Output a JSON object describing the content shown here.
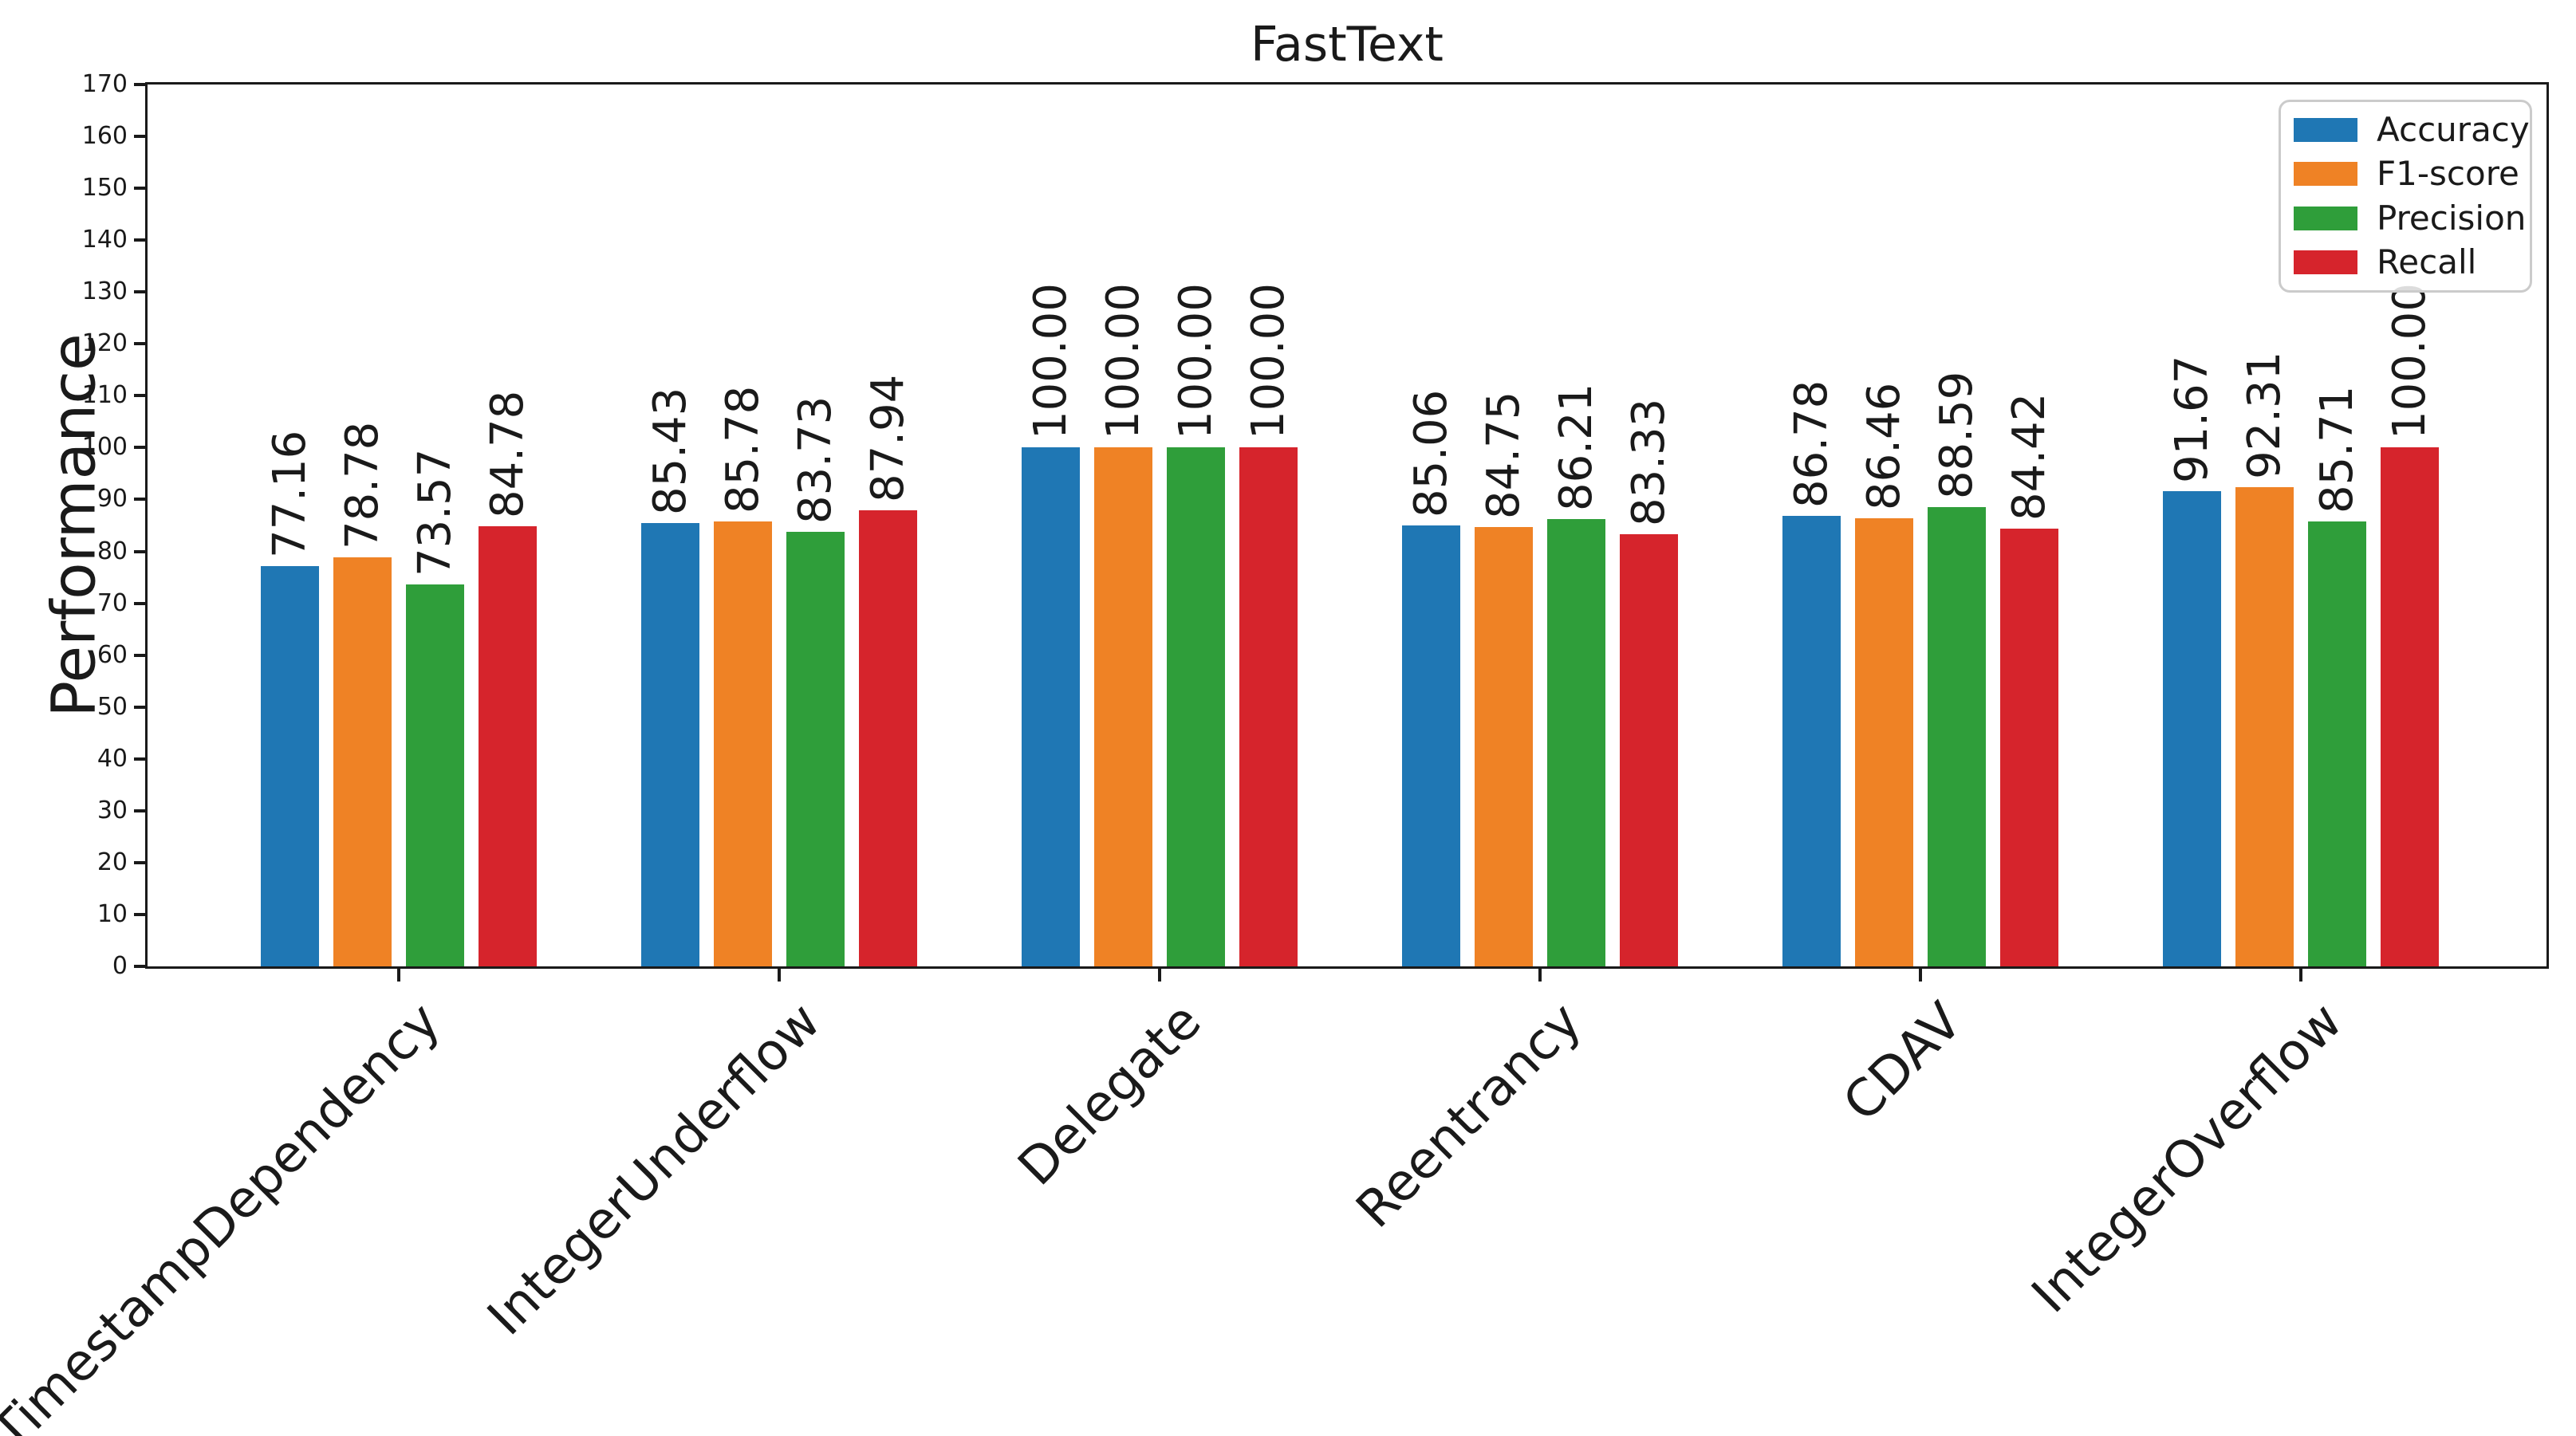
{
  "chart_data": {
    "type": "bar",
    "title": "FastText",
    "ylabel": "Performance",
    "ylim": [
      0,
      170
    ],
    "ytick_step": 10,
    "grid": false,
    "legend_position": "upper right",
    "bar_label_rotation": 90,
    "bar_label_decimals": 2,
    "categories": [
      "TimestampDependency",
      "IntegerUnderflow",
      "Delegate",
      "Reentrancy",
      "CDAV",
      "IntegerOverflow"
    ],
    "series": [
      {
        "name": "Accuracy",
        "color": "#1f77b4",
        "values": [
          77.16,
          85.43,
          100.0,
          85.06,
          86.78,
          91.67
        ]
      },
      {
        "name": "F1-score",
        "color": "#ef8225",
        "values": [
          78.78,
          85.78,
          100.0,
          84.75,
          86.46,
          92.31
        ]
      },
      {
        "name": "Precision",
        "color": "#2f9e3a",
        "values": [
          73.57,
          83.73,
          100.0,
          86.21,
          88.59,
          85.71
        ]
      },
      {
        "name": "Recall",
        "color": "#d6242c",
        "values": [
          84.78,
          87.94,
          100.0,
          83.33,
          84.42,
          100.0
        ]
      }
    ]
  }
}
